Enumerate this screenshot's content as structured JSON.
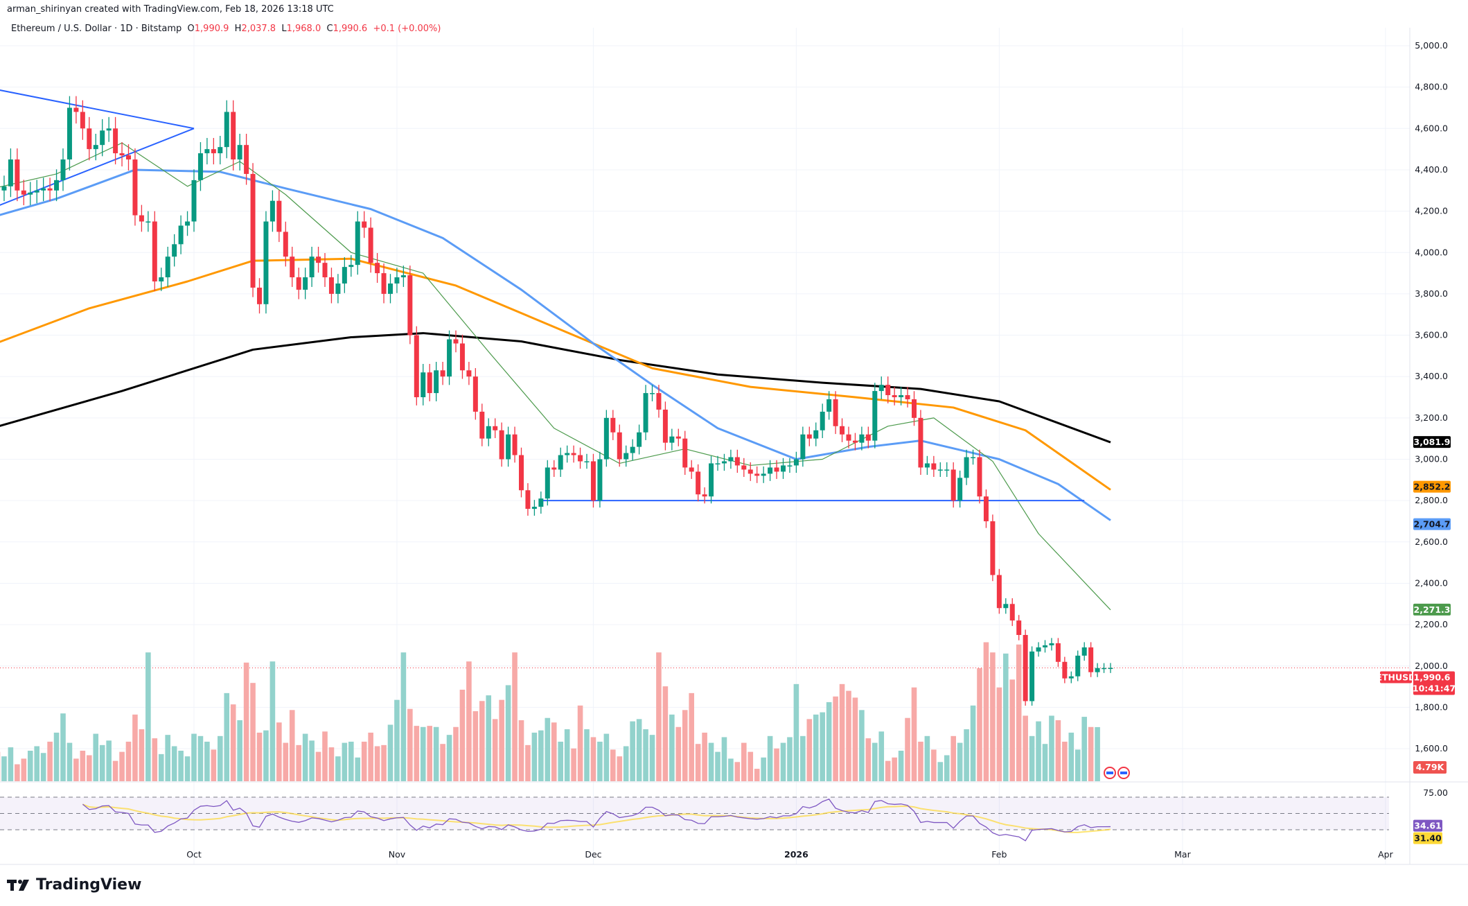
{
  "credit": "arman_shirinyan created with TradingView.com, Feb 18, 2026 13:18 UTC",
  "legend": {
    "symbol": "Ethereum / U.S. Dollar · 1D · Bitstamp",
    "o_label": "O",
    "o": "1,990.9",
    "h_label": "H",
    "h": "2,037.8",
    "l_label": "L",
    "l": "1,968.0",
    "c_label": "C",
    "c": "1,990.6",
    "change": "+0.1 (+0.00%)"
  },
  "brand": "TradingView",
  "colors": {
    "up": "#089981",
    "down": "#f23645",
    "vol_up": "#92d2cc",
    "vol_down": "#f7a9a7",
    "ma20": "#4c9a4c",
    "ma50": "#5b9cf6",
    "ma100": "#ff9800",
    "ma200": "#000000",
    "trendline": "#2962ff",
    "rsi": "#7e57c2",
    "rsi_ma": "#fdd835"
  },
  "chart_data": {
    "type": "candlestick",
    "start_date": "2025-08-30",
    "interval": "1D",
    "ylim": [
      1500,
      5100
    ],
    "y_ticks": [
      "5,000.0",
      "4,800.0",
      "4,600.0",
      "4,400.0",
      "4,200.0",
      "4,000.0",
      "3,800.0",
      "3,600.0",
      "3,400.0",
      "3,200.0",
      "3,000.0",
      "2,800.0",
      "2,600.0",
      "2,400.0",
      "2,200.0",
      "2,000.0",
      "1,800.0",
      "1,600.0"
    ],
    "y_tick_values": [
      5000,
      4800,
      4600,
      4400,
      4200,
      4000,
      3800,
      3600,
      3400,
      3200,
      3000,
      2800,
      2600,
      2400,
      2200,
      2000,
      1800,
      1600
    ],
    "x_ticks": [
      {
        "label": "Oct",
        "date": "2025-10-01"
      },
      {
        "label": "Nov",
        "date": "2025-11-01"
      },
      {
        "label": "Dec",
        "date": "2025-12-01"
      },
      {
        "label": "2026",
        "date": "2026-01-01"
      },
      {
        "label": "Feb",
        "date": "2026-02-01"
      },
      {
        "label": "Mar",
        "date": "2026-03-01"
      },
      {
        "label": "Apr",
        "date": "2026-04-01"
      }
    ],
    "close": [
      4370,
      4400,
      4300,
      4320,
      4450,
      4300,
      4280,
      4290,
      4300,
      4310,
      4300,
      4350,
      4450,
      4700,
      4680,
      4600,
      4500,
      4520,
      4590,
      4600,
      4480,
      4470,
      4450,
      4180,
      4150,
      4150,
      3860,
      3880,
      3980,
      4040,
      4130,
      4150,
      4350,
      4480,
      4500,
      4480,
      4510,
      4680,
      4450,
      4520,
      4380,
      3830,
      3750,
      4150,
      4250,
      4100,
      3980,
      3880,
      3820,
      3880,
      3980,
      3950,
      3880,
      3800,
      3850,
      3930,
      3940,
      4150,
      4120,
      3950,
      3900,
      3800,
      3850,
      3880,
      3890,
      3600,
      3300,
      3420,
      3320,
      3430,
      3400,
      3580,
      3560,
      3430,
      3400,
      3230,
      3100,
      3160,
      3140,
      3000,
      3120,
      3020,
      2850,
      2760,
      2770,
      2810,
      2960,
      2950,
      3020,
      3030,
      3020,
      2990,
      2990,
      2800,
      3000,
      3200,
      3130,
      3000,
      3030,
      3060,
      3130,
      3320,
      3320,
      3240,
      3080,
      3110,
      3100,
      2960,
      2940,
      2830,
      2820,
      2980,
      2980,
      2990,
      3010,
      2970,
      2950,
      2930,
      2920,
      2930,
      2960,
      2940,
      2970,
      2970,
      3000,
      3120,
      3100,
      3140,
      3230,
      3290,
      3160,
      3120,
      3090,
      3080,
      3120,
      3090,
      3330,
      3360,
      3310,
      3300,
      3310,
      3290,
      3200,
      2960,
      2980,
      2950,
      2950,
      2950,
      2800,
      2910,
      3010,
      3010,
      2820,
      2700,
      2440,
      2280,
      2300,
      2220,
      2150,
      1830,
      2070,
      2090,
      2100,
      2110,
      2020,
      1940,
      1950,
      2050,
      2090,
      1970,
      1990,
      1990,
      1990.6
    ],
    "volume_k": [
      3.2,
      5.5,
      2.6,
      2.2,
      3.0,
      1.5,
      2.0,
      2.7,
      3.1,
      2.5,
      3.5,
      4.3,
      6.0,
      3.4,
      2.0,
      2.7,
      2.3,
      4.2,
      3.2,
      3.6,
      1.8,
      2.6,
      3.5,
      5.9,
      4.6,
      11.4,
      3.8,
      2.4,
      4.1,
      3.1,
      2.7,
      2.2,
      4.2,
      4.0,
      3.5,
      2.8,
      4.0,
      7.8,
      6.8,
      5.4,
      10.5,
      8.7,
      4.3,
      4.5,
      10.6,
      5.2,
      3.4,
      6.3,
      3.2,
      4.2,
      3.6,
      2.6,
      4.4,
      3.0,
      2.2,
      3.4,
      3.5,
      2.1,
      3.5,
      4.3,
      3.1,
      3.2,
      5.0,
      7.2,
      11.4,
      6.4,
      4.9,
      4.8,
      4.9,
      4.8,
      3.3,
      4.1,
      4.8,
      8.1,
      10.6,
      6.2,
      7.1,
      7.6,
      5.5,
      7.2,
      8.5,
      11.4,
      5.4,
      3.2,
      4.3,
      4.5,
      5.6,
      5.2,
      3.5,
      4.6,
      2.9,
      6.7,
      4.6,
      3.9,
      3.5,
      4.2,
      2.8,
      2.2,
      3.1,
      5.3,
      5.5,
      4.6,
      4.1,
      11.4,
      8.4,
      5.9,
      4.8,
      6.3,
      7.8,
      3.3,
      4.3,
      3.4,
      2.6,
      3.9,
      2.0,
      1.7,
      3.4,
      2.6,
      1.1,
      2.1,
      4.0,
      2.9,
      3.4,
      3.9,
      8.6,
      4.0,
      5.5,
      5.9,
      6.1,
      7.0,
      7.5,
      8.6,
      8.0,
      7.4,
      6.3,
      3.8,
      3.4,
      4.4,
      1.8,
      2.1,
      2.7,
      5.6,
      8.3,
      3.5,
      4.0,
      2.8,
      1.7,
      2.3,
      4.0,
      3.4,
      4.6,
      6.7,
      10.0,
      12.3,
      11.4,
      8.3,
      11.3,
      9.0,
      12.1,
      5.8,
      4.0,
      5.3,
      3.3,
      5.8,
      5.4,
      3.5,
      4.3,
      2.8,
      5.7,
      4.8,
      4.79
    ],
    "moving_averages": [
      {
        "color_key": "ma200",
        "last": "3,081.9",
        "points": [
          [
            "2025-08-30",
            3140
          ],
          [
            "2025-09-20",
            3330
          ],
          [
            "2025-10-10",
            3530
          ],
          [
            "2025-10-25",
            3590
          ],
          [
            "2025-11-05",
            3610
          ],
          [
            "2025-11-20",
            3570
          ],
          [
            "2025-12-05",
            3480
          ],
          [
            "2025-12-20",
            3410
          ],
          [
            "2026-01-05",
            3370
          ],
          [
            "2026-01-20",
            3340
          ],
          [
            "2026-02-01",
            3280
          ],
          [
            "2026-02-18",
            3081.9
          ]
        ]
      },
      {
        "color_key": "ma100",
        "last": "2,852.2",
        "points": [
          [
            "2025-08-30",
            3540
          ],
          [
            "2025-09-15",
            3730
          ],
          [
            "2025-09-30",
            3860
          ],
          [
            "2025-10-10",
            3960
          ],
          [
            "2025-10-25",
            3970
          ],
          [
            "2025-11-10",
            3840
          ],
          [
            "2025-11-25",
            3640
          ],
          [
            "2025-12-10",
            3440
          ],
          [
            "2025-12-25",
            3350
          ],
          [
            "2026-01-10",
            3300
          ],
          [
            "2026-01-25",
            3250
          ],
          [
            "2026-02-05",
            3140
          ],
          [
            "2026-02-18",
            2852.2
          ]
        ]
      },
      {
        "color_key": "ma50",
        "last": "2,704.7",
        "points": [
          [
            "2025-08-30",
            4160
          ],
          [
            "2025-09-10",
            4260
          ],
          [
            "2025-09-22",
            4400
          ],
          [
            "2025-10-05",
            4390
          ],
          [
            "2025-10-15",
            4310
          ],
          [
            "2025-10-28",
            4210
          ],
          [
            "2025-11-08",
            4070
          ],
          [
            "2025-11-20",
            3820
          ],
          [
            "2025-12-01",
            3560
          ],
          [
            "2025-12-10",
            3360
          ],
          [
            "2025-12-20",
            3150
          ],
          [
            "2026-01-01",
            3000
          ],
          [
            "2026-01-12",
            3060
          ],
          [
            "2026-01-20",
            3090
          ],
          [
            "2026-02-01",
            3000
          ],
          [
            "2026-02-10",
            2880
          ],
          [
            "2026-02-18",
            2704.7
          ]
        ]
      },
      {
        "color_key": "ma20",
        "last": "2,271.3",
        "points": [
          [
            "2025-08-30",
            4300
          ],
          [
            "2025-09-10",
            4380
          ],
          [
            "2025-09-20",
            4530
          ],
          [
            "2025-09-30",
            4320
          ],
          [
            "2025-10-08",
            4440
          ],
          [
            "2025-10-15",
            4280
          ],
          [
            "2025-10-25",
            4000
          ],
          [
            "2025-11-05",
            3900
          ],
          [
            "2025-11-15",
            3520
          ],
          [
            "2025-11-25",
            3150
          ],
          [
            "2025-12-05",
            2980
          ],
          [
            "2025-12-15",
            3050
          ],
          [
            "2025-12-25",
            2970
          ],
          [
            "2026-01-05",
            3000
          ],
          [
            "2026-01-15",
            3160
          ],
          [
            "2026-01-22",
            3200
          ],
          [
            "2026-01-31",
            2990
          ],
          [
            "2026-02-07",
            2640
          ],
          [
            "2026-02-18",
            2271.3
          ]
        ]
      }
    ],
    "trendlines": [
      {
        "from": [
          "2025-08-30",
          4800
        ],
        "to": [
          "2025-10-01",
          4600
        ]
      },
      {
        "from": [
          "2025-08-30",
          4200
        ],
        "to": [
          "2025-10-01",
          4600
        ]
      },
      {
        "from": [
          "2025-11-23",
          2800
        ],
        "to": [
          "2026-02-14",
          2800
        ]
      }
    ],
    "last_price": {
      "symbol": "ETHUSD",
      "price": "1,990.6",
      "countdown": "10:41:47"
    },
    "volume_label": "4.79K",
    "rsi": {
      "levels": [
        70,
        50,
        30
      ],
      "tick": "75.00",
      "last": "34.61",
      "ma_last": "31.40"
    }
  }
}
